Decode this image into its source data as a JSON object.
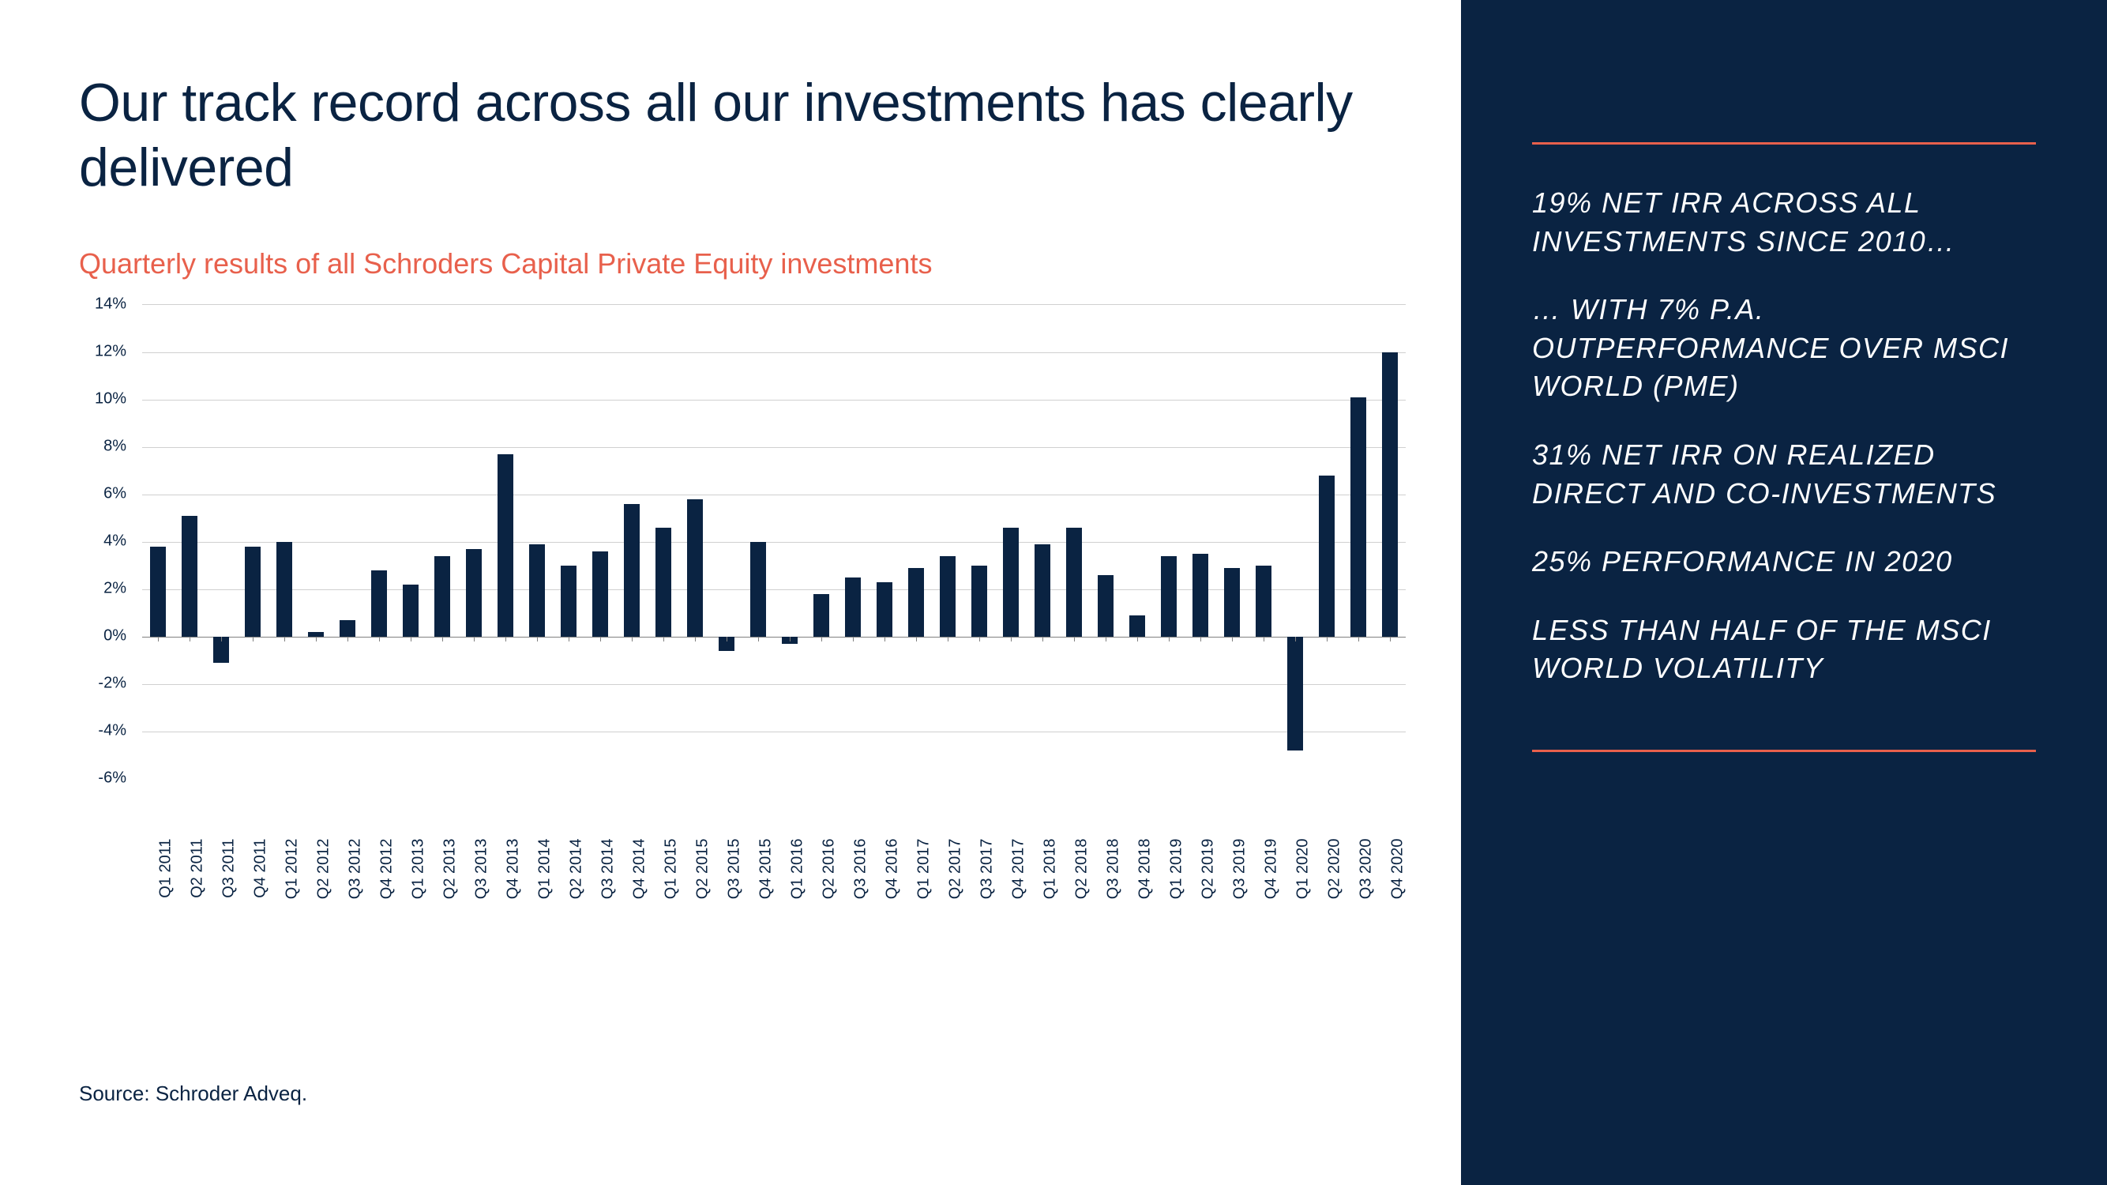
{
  "left": {
    "title": "Our track record across all our investments has clearly delivered",
    "subtitle": "Quarterly results of all Schroders Capital Private Equity investments",
    "source": "Source: Schroder Adveq."
  },
  "chart": {
    "type": "bar",
    "bar_color": "#0a2342",
    "background_color": "#ffffff",
    "grid_color": "#d0d0d0",
    "axis_color": "#808080",
    "label_color": "#0a2342",
    "label_fontsize": 20,
    "ylim": [
      -6,
      14
    ],
    "ytick_step": 2,
    "y_ticks": [
      -6,
      -4,
      -2,
      0,
      2,
      4,
      6,
      8,
      10,
      12,
      14
    ],
    "y_tick_labels": [
      "-6%",
      "-4%",
      "-2%",
      "0%",
      "2%",
      "4%",
      "6%",
      "8%",
      "10%",
      "12%",
      "14%"
    ],
    "bar_width_ratio": 0.5,
    "categories": [
      "Q1 2011",
      "Q2 2011",
      "Q3 2011",
      "Q4 2011",
      "Q1 2012",
      "Q2 2012",
      "Q3 2012",
      "Q4 2012",
      "Q1 2013",
      "Q2 2013",
      "Q3 2013",
      "Q4 2013",
      "Q1 2014",
      "Q2 2014",
      "Q3 2014",
      "Q4 2014",
      "Q1 2015",
      "Q2 2015",
      "Q3 2015",
      "Q4 2015",
      "Q1 2016",
      "Q2 2016",
      "Q3 2016",
      "Q4 2016",
      "Q1 2017",
      "Q2 2017",
      "Q3 2017",
      "Q4 2017",
      "Q1 2018",
      "Q2 2018",
      "Q3 2018",
      "Q4 2018",
      "Q1 2019",
      "Q2 2019",
      "Q3 2019",
      "Q4 2019",
      "Q1 2020",
      "Q2 2020",
      "Q3 2020",
      "Q4 2020"
    ],
    "values": [
      3.8,
      5.1,
      -1.1,
      3.8,
      4.0,
      0.2,
      0.7,
      2.8,
      2.2,
      3.4,
      3.7,
      7.7,
      3.9,
      3.0,
      3.6,
      5.6,
      4.6,
      5.8,
      -0.6,
      4.0,
      -0.3,
      1.8,
      2.5,
      2.3,
      2.9,
      3.4,
      3.0,
      4.6,
      3.9,
      4.6,
      2.6,
      0.9,
      3.4,
      3.5,
      2.9,
      3.0,
      -4.8,
      6.8,
      10.1,
      12.0
    ]
  },
  "right": {
    "accent_color": "#e8604c",
    "background_color": "#0a2342",
    "text_color": "#ffffff",
    "callouts": [
      "19% NET IRR ACROSS ALL INVESTMENTS SINCE 2010…",
      "… WITH 7% P.A. OUTPERFORMANCE OVER MSCI WORLD (PME)",
      "31% NET IRR ON REALIZED DIRECT AND CO-INVESTMENTS",
      "25% PERFORMANCE IN 2020",
      "LESS THAN HALF OF THE MSCI WORLD VOLATILITY"
    ]
  }
}
